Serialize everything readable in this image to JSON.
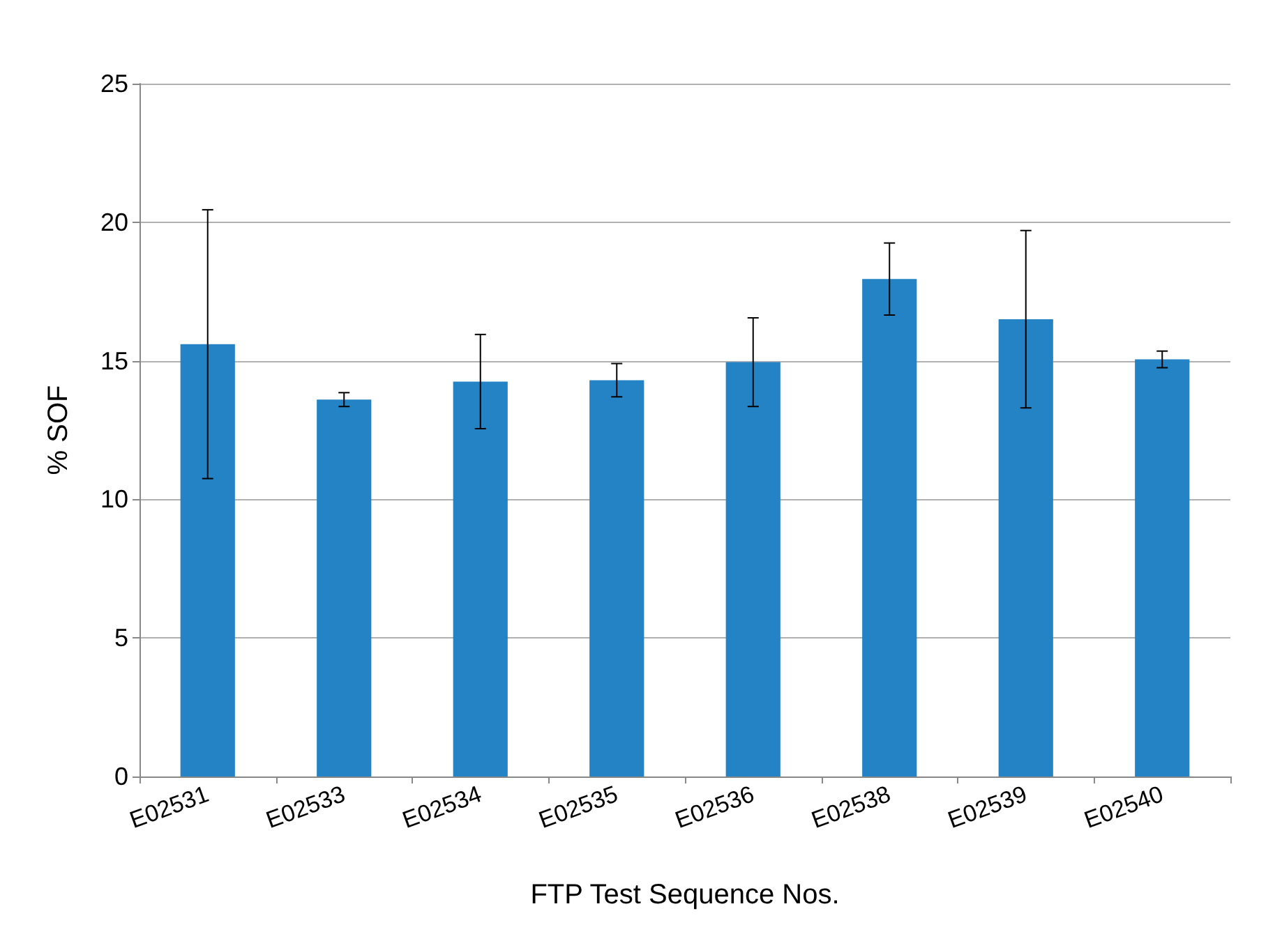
{
  "chart_data": {
    "type": "bar",
    "xlabel": "FTP Test Sequence Nos.",
    "ylabel": "% SOF",
    "categories": [
      "E02531",
      "E02533",
      "E02534",
      "E02535",
      "E02536",
      "E02538",
      "E02539",
      "E02540"
    ],
    "values": [
      15.6,
      13.6,
      14.25,
      14.3,
      14.95,
      17.95,
      16.5,
      15.05
    ],
    "errors": [
      4.85,
      0.25,
      1.7,
      0.6,
      1.6,
      1.3,
      3.2,
      0.3
    ],
    "color": "#2383c4",
    "ylim": [
      0,
      25
    ],
    "yticks": [
      0,
      5,
      10,
      15,
      20,
      25
    ],
    "grid": "y"
  }
}
